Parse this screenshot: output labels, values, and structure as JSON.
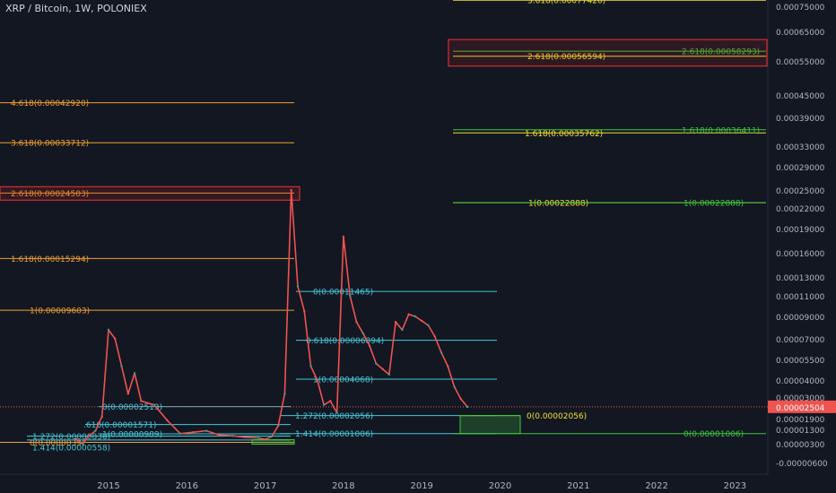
{
  "chart_data": {
    "type": "line",
    "title": "XRP / Bitcoin, 1W, POLONIEX",
    "current_price": {
      "value": 2.504e-05,
      "label": "0.00002504",
      "color": "#ef5350"
    },
    "y_axis": {
      "labels": [
        "0.00075000",
        "0.00065000",
        "0.00055000",
        "0.00045000",
        "0.00039000",
        "0.00033000",
        "0.00029000",
        "0.00025000",
        "0.00022000",
        "0.00019000",
        "0.00016000",
        "0.00013000",
        "0.00011000",
        "0.00009000",
        "0.00007000",
        "0.00005500",
        "0.00004000",
        "0.00003000",
        "0.00001900",
        "0.00001300",
        "0.00000300",
        "-0.00000600"
      ]
    },
    "x_axis": {
      "labels": [
        "2015",
        "2016",
        "2017",
        "2018",
        "2019",
        "2020",
        "2021",
        "2022",
        "2023"
      ]
    },
    "series": [
      {
        "x": [
          "2014-08",
          "2014-09",
          "2014-10",
          "2014-11",
          "2014-12",
          "2015-01",
          "2015-02",
          "2015-03",
          "2015-04",
          "2015-05",
          "2015-06",
          "2015-08",
          "2015-10",
          "2015-12",
          "2016-02",
          "2016-04",
          "2016-06",
          "2016-08",
          "2016-10",
          "2016-12",
          "2017-01",
          "2017-02",
          "2017-03",
          "2017-04",
          "2017-05",
          "2017-06",
          "2017-07",
          "2017-08",
          "2017-09",
          "2017-10",
          "2017-11",
          "2017-12",
          "2018-01",
          "2018-02",
          "2018-03",
          "2018-04",
          "2018-05",
          "2018-06",
          "2018-07",
          "2018-08",
          "2018-09",
          "2018-10",
          "2018-11",
          "2018-12",
          "2019-01",
          "2019-02",
          "2019-03",
          "2019-04",
          "2019-05",
          "2019-06",
          "2019-07",
          "2019-08"
        ],
        "values": [
          6.5e-06,
          3e-06,
          8.5e-06,
          1.2e-05,
          2e-05,
          7.8e-05,
          7e-05,
          5e-05,
          3.2e-05,
          4.5e-05,
          2.8e-05,
          2.6e-05,
          1.8e-05,
          1e-05,
          1.1e-05,
          1.2e-05,
          9e-06,
          8.5e-06,
          7.5e-06,
          7e-06,
          6e-06,
          8e-06,
          1.5e-05,
          3.2e-05,
          0.00025,
          0.00012,
          9.5e-05,
          5e-05,
          4e-05,
          2.6e-05,
          2.8e-05,
          2.2e-05,
          0.00018,
          0.00011,
          8.5e-05,
          7.5e-05,
          6.5e-05,
          5.2e-05,
          4.8e-05,
          4.4e-05,
          8.5e-05,
          7.8e-05,
          9.2e-05,
          9e-05,
          8.6e-05,
          8.2e-05,
          7.2e-05,
          6e-05,
          5e-05,
          3.6e-05,
          2.9e-05,
          2.5e-05
        ]
      }
    ],
    "fib_sets": [
      {
        "color": "#f0a030",
        "levels": [
          {
            "label": "4.618(0.00042920)",
            "value": 0.0004292
          },
          {
            "label": "3.618(0.00033712)",
            "value": 0.00033712
          },
          {
            "label": "2.618(0.00024503)",
            "value": 0.00024503
          },
          {
            "label": "1.618(0.00015294)",
            "value": 0.00015294
          },
          {
            "label": "1(0.00009603)",
            "value": 9.603e-05
          },
          {
            "label": "0(0.0000039)",
            "value": 3.9e-06
          }
        ]
      },
      {
        "color": "#46c8d8",
        "levels": [
          {
            "label": "0(0.00002513)",
            "value": 2.513e-05
          },
          {
            "label": ".618(0.00001571)",
            "value": 1.571e-05
          },
          {
            "label": "1(0.00000989)",
            "value": 9.89e-06
          },
          {
            "label": "1.272(0.00000830)",
            "value": 8.3e-06
          },
          {
            "label": "1.414(0.00000558)",
            "value": 5.58e-06
          },
          {
            "label": "0(0.00011465)",
            "value": 0.00011465
          },
          {
            "label": "0.618(0.00006894)",
            "value": 6.894e-05
          },
          {
            "label": "1(0.00004068)",
            "value": 4.068e-05
          },
          {
            "label": "1.272(0.00002056)",
            "value": 2.056e-05
          },
          {
            "label": "1.414(0.00001006)",
            "value": 1.006e-05
          }
        ]
      },
      {
        "color": "#f0e030",
        "levels": [
          {
            "label": "3.618(0.00077420)",
            "value": 0.0007742
          },
          {
            "label": "2.618(0.00056594)",
            "value": 0.00056594
          },
          {
            "label": "1.618(0.00035762)",
            "value": 0.00035762
          },
          {
            "label": "1(0.00022888)",
            "value": 0.00022888
          },
          {
            "label": "0(0.00002056)",
            "value": 2.056e-05
          }
        ]
      },
      {
        "color": "#3ec53e",
        "levels": [
          {
            "label": "2.618(0.00058293)",
            "value": 0.00058293
          },
          {
            "label": "1.618(0.00036411)",
            "value": 0.00036411
          },
          {
            "label": "1(0.00022888)",
            "value": 0.00022888
          },
          {
            "label": "0(0.00001006)",
            "value": 1.006e-05
          }
        ]
      }
    ]
  }
}
